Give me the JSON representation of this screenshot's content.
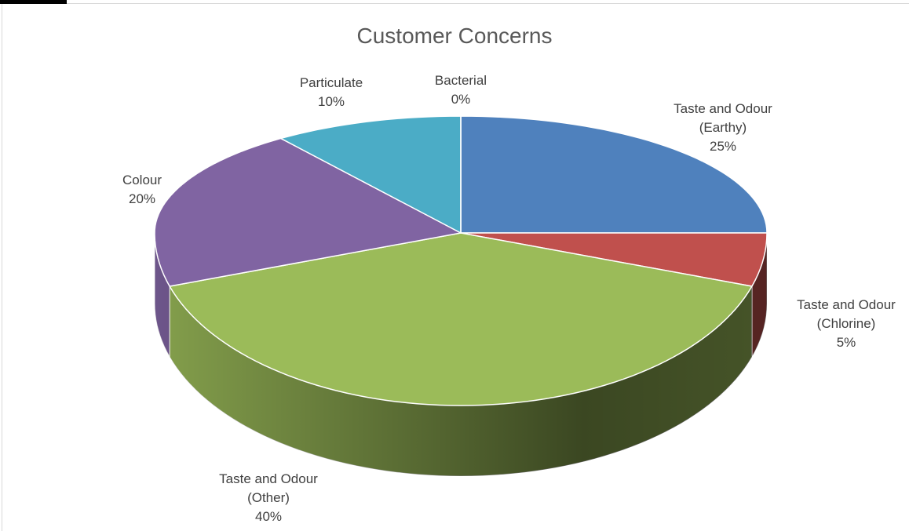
{
  "chart_data": {
    "type": "pie",
    "title": "Customer Concerns",
    "categories": [
      "Taste and Odour (Earthy)",
      "Taste and Odour (Chlorine)",
      "Taste and Odour (Other)",
      "Colour",
      "Particulate",
      "Bacterial"
    ],
    "values": [
      25,
      5,
      40,
      20,
      10,
      0
    ],
    "value_labels": [
      "25%",
      "5%",
      "40%",
      "20%",
      "10%",
      "0%"
    ],
    "colors": [
      "#4f81bd",
      "#c0504d",
      "#9bbb59",
      "#8064a2",
      "#4bacc6",
      "#f79646"
    ],
    "three_d": true
  }
}
